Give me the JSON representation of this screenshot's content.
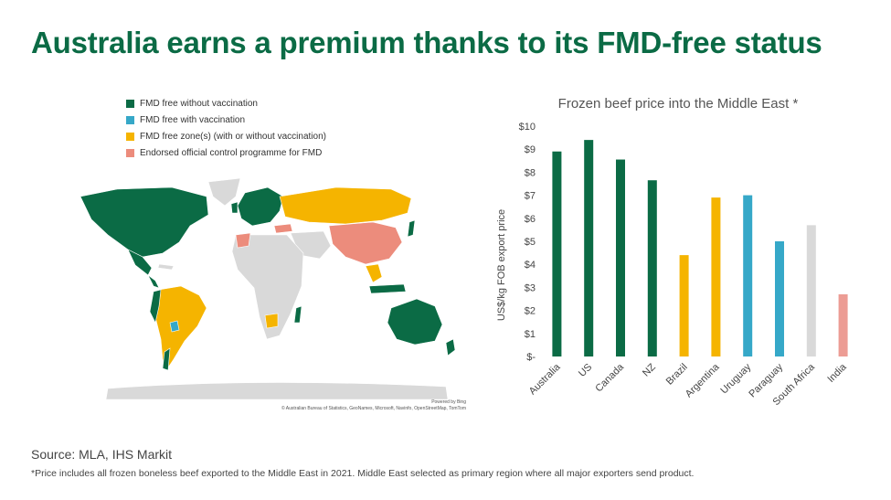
{
  "slide": {
    "title": "Australia earns a premium thanks to its FMD-free status",
    "source": "Source: MLA, IHS Markit",
    "footnote": "*Price includes all frozen boneless beef exported to the Middle East in 2021. Middle East selected as primary region where all major exporters send product."
  },
  "map": {
    "legend": [
      {
        "label": "FMD free without vaccination",
        "color": "#0b6b45"
      },
      {
        "label": "FMD free with vaccination",
        "color": "#36a8c8"
      },
      {
        "label": "FMD free zone(s) (with or without vaccination)",
        "color": "#f5b400"
      },
      {
        "label": "Endorsed official control programme for FMD",
        "color": "#ec8c7c"
      }
    ],
    "land_color": "#d9d9d9",
    "credit_line1": "Powered by Bing",
    "credit_line2": "© Australian Bureau of Statistics, GeoNames, Microsoft, Navinfo, OpenStreetMap, TomTom"
  },
  "chart_data": {
    "type": "bar",
    "title": "Frozen beef price into the Middle East *",
    "ylabel": "US$/kg FOB export price",
    "xlabel": "",
    "ylim": [
      0,
      10
    ],
    "yticks": [
      "$-",
      "$1",
      "$2",
      "$3",
      "$4",
      "$5",
      "$6",
      "$7",
      "$8",
      "$9",
      "$10"
    ],
    "categories": [
      "Australia",
      "US",
      "Canada",
      "NZ",
      "Brazil",
      "Argentina",
      "Uruguay",
      "Paraguay",
      "South Africa",
      "India"
    ],
    "values": [
      8.9,
      9.4,
      8.55,
      7.65,
      4.4,
      6.9,
      7.0,
      5.0,
      5.7,
      2.7
    ],
    "colors": [
      "#0b6b45",
      "#0b6b45",
      "#0b6b45",
      "#0b6b45",
      "#f5b400",
      "#f5b400",
      "#36a8c8",
      "#36a8c8",
      "#d9d9d9",
      "#ec9c94"
    ],
    "grid": false,
    "legend": "none"
  }
}
